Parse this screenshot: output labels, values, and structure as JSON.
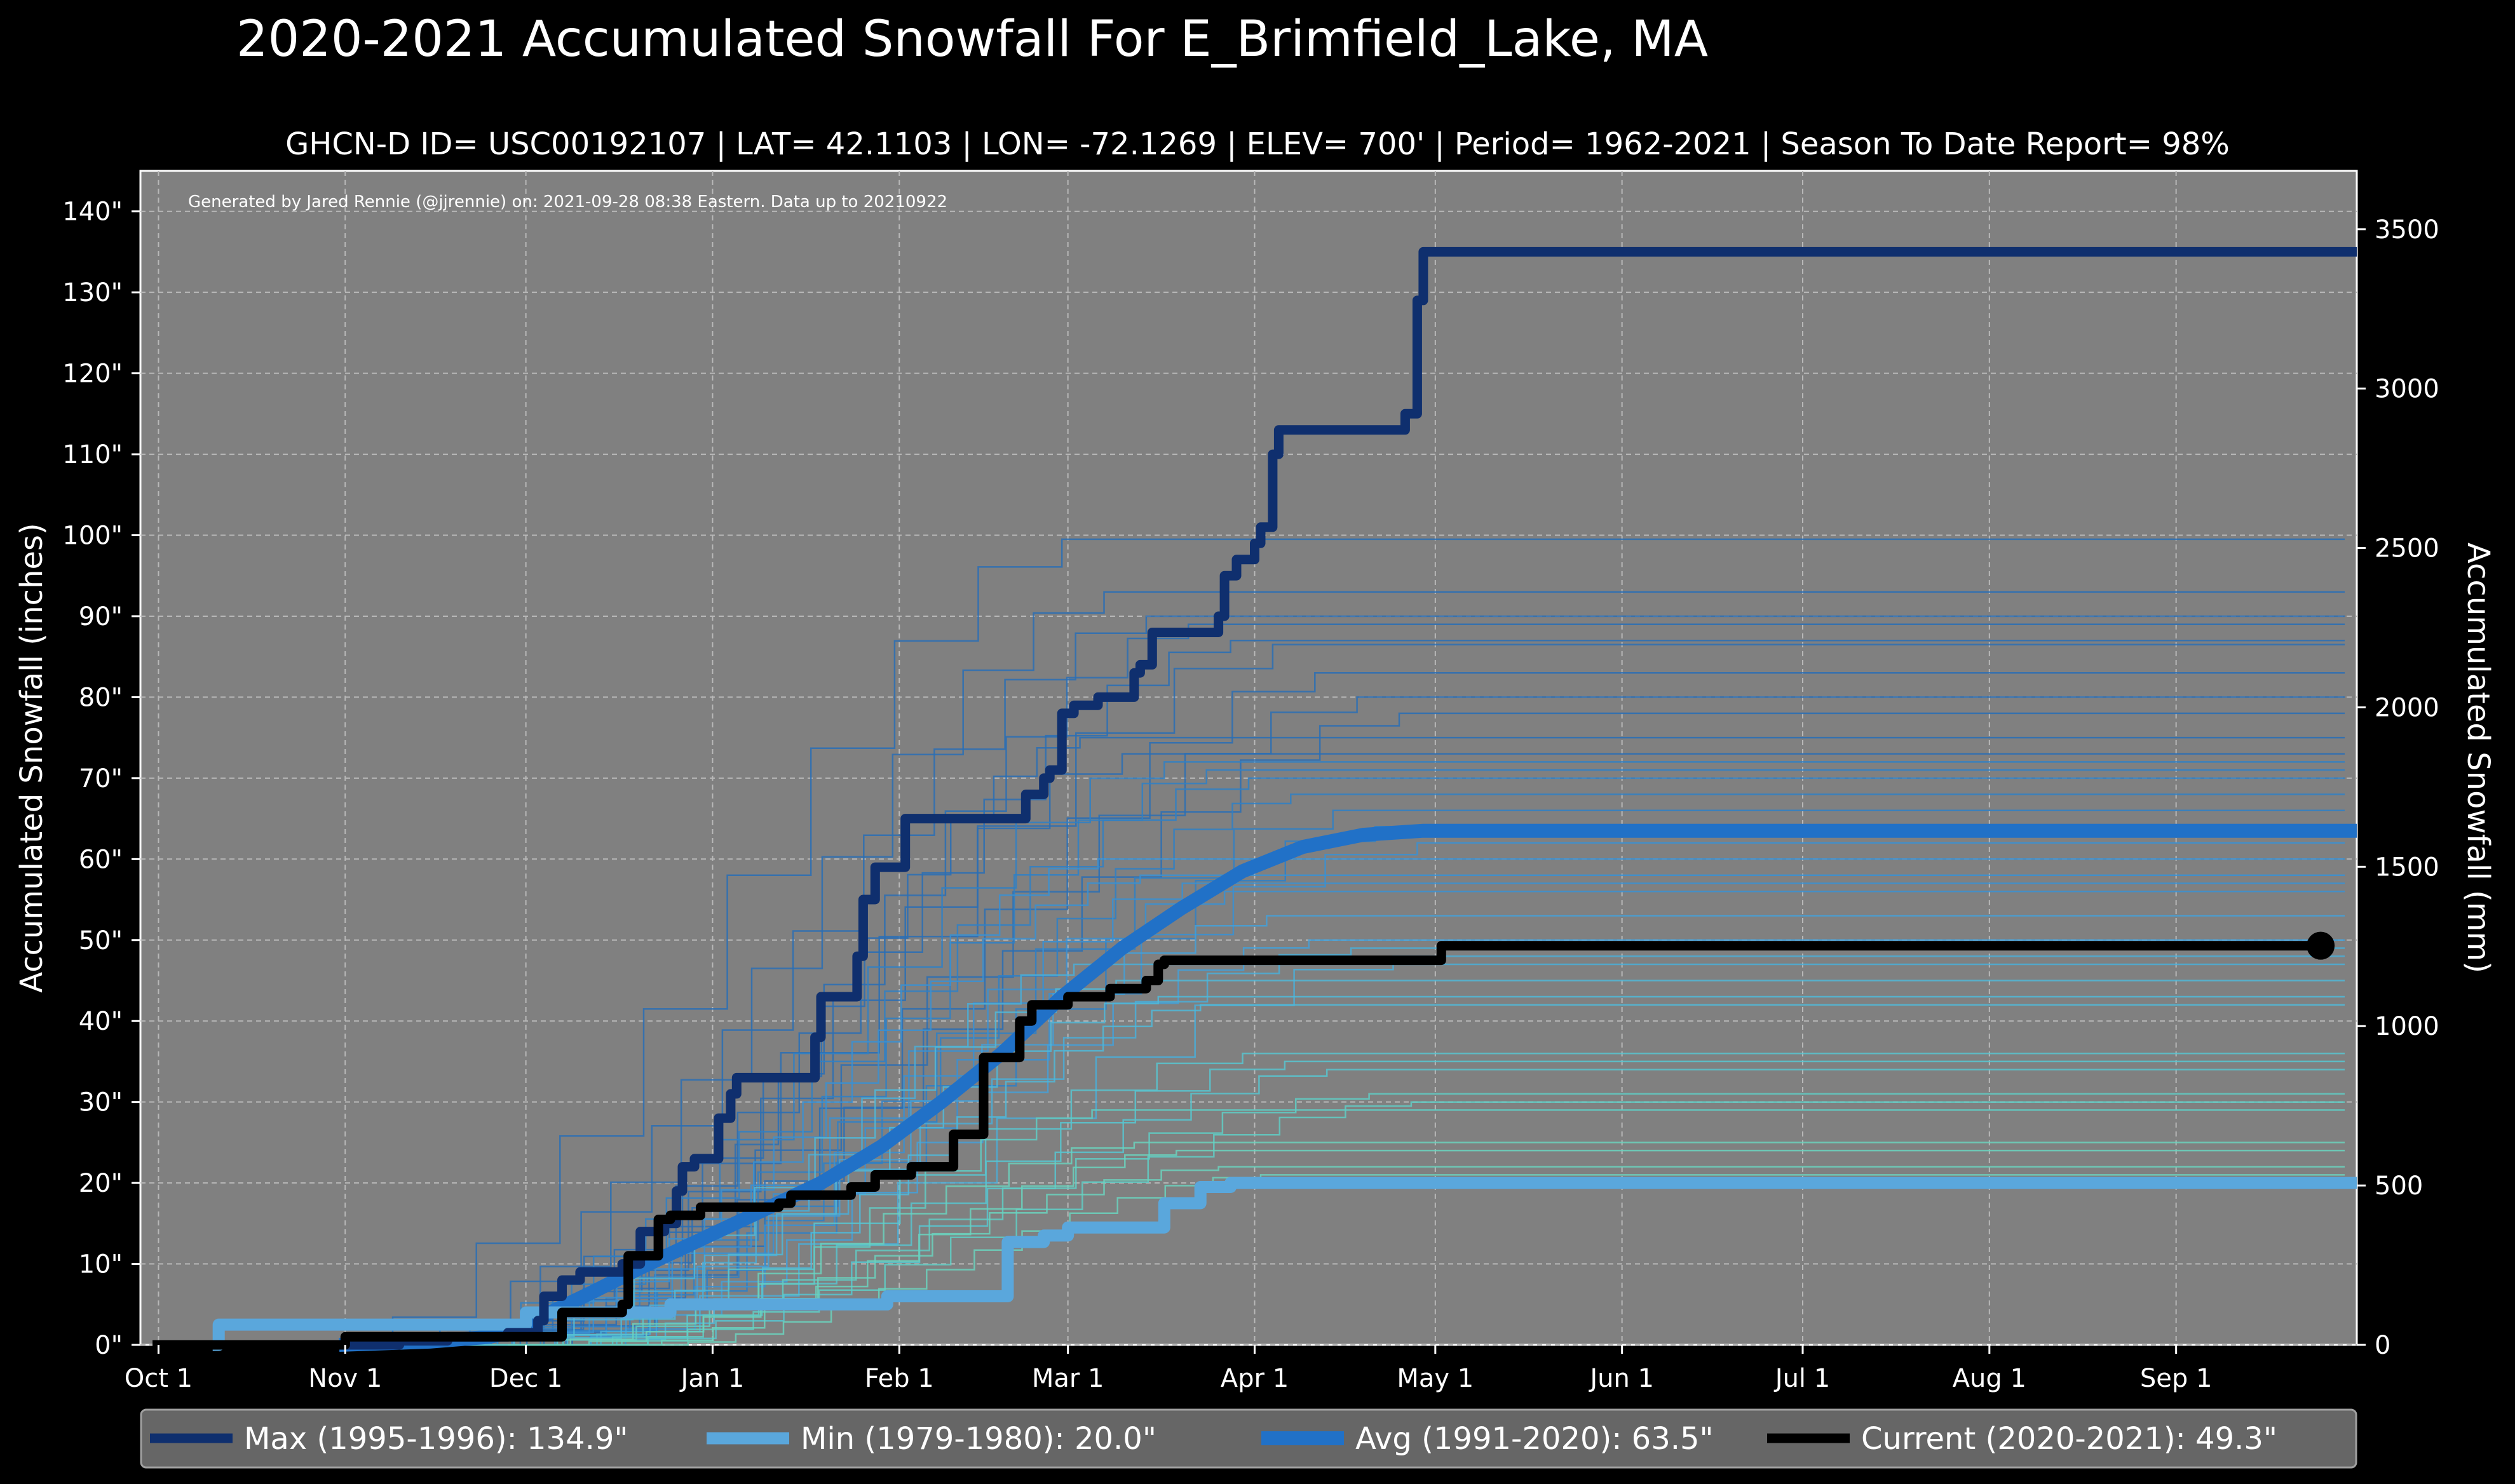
{
  "title": "2020-2021 Accumulated Snowfall For E_Brimfield_Lake, MA",
  "subtitle": "GHCN-D ID= USC00192107 | LAT= 42.1103 | LON= -72.1269 | ELEV= 700' | Period= 1962-2021 | Season To Date Report= 98%",
  "credit": "Generated by Jared Rennie (@jjrennie) on: 2021-09-28 08:38 Eastern. Data up to 20210922",
  "colors": {
    "background": "#000000",
    "plot_bg": "#808080",
    "max": "#0f2f6e",
    "min": "#5aa7dc",
    "avg": "#2171c7",
    "current": "#000000",
    "legend_bg": "#666666"
  },
  "chart_data": {
    "type": "line",
    "title": "2020-2021 Accumulated Snowfall For E_Brimfield_Lake, MA",
    "xlabel": "",
    "ylabel": "Accumulated Snowfall (inches)",
    "y2label": "Accumulated Snowfall (mm)",
    "x_unit": "day of season (0 = Oct 1)",
    "xlim": [
      -3,
      365
    ],
    "ylim": [
      0,
      145
    ],
    "y2lim": [
      0,
      3683
    ],
    "grid": true,
    "x_ticks": [
      {
        "day": 0,
        "label": "Oct 1"
      },
      {
        "day": 31,
        "label": "Nov 1"
      },
      {
        "day": 61,
        "label": "Dec 1"
      },
      {
        "day": 92,
        "label": "Jan 1"
      },
      {
        "day": 123,
        "label": "Feb 1"
      },
      {
        "day": 151,
        "label": "Mar 1"
      },
      {
        "day": 182,
        "label": "Apr 1"
      },
      {
        "day": 212,
        "label": "May 1"
      },
      {
        "day": 243,
        "label": "Jun 1"
      },
      {
        "day": 273,
        "label": "Jul 1"
      },
      {
        "day": 304,
        "label": "Aug 1"
      },
      {
        "day": 335,
        "label": "Sep 1"
      }
    ],
    "y_ticks": [
      {
        "value": 0,
        "label": "0\""
      },
      {
        "value": 10,
        "label": "10\""
      },
      {
        "value": 20,
        "label": "20\""
      },
      {
        "value": 30,
        "label": "30\""
      },
      {
        "value": 40,
        "label": "40\""
      },
      {
        "value": 50,
        "label": "50\""
      },
      {
        "value": 60,
        "label": "60\""
      },
      {
        "value": 70,
        "label": "70\""
      },
      {
        "value": 80,
        "label": "80\""
      },
      {
        "value": 90,
        "label": "90\""
      },
      {
        "value": 100,
        "label": "100\""
      },
      {
        "value": 110,
        "label": "110\""
      },
      {
        "value": 120,
        "label": "120\""
      },
      {
        "value": 130,
        "label": "130\""
      },
      {
        "value": 140,
        "label": "140\""
      }
    ],
    "y2_ticks": [
      {
        "value": 0,
        "label": "0"
      },
      {
        "value": 500,
        "label": "500"
      },
      {
        "value": 1000,
        "label": "1000"
      },
      {
        "value": 1500,
        "label": "1500"
      },
      {
        "value": 2000,
        "label": "2000"
      },
      {
        "value": 2500,
        "label": "2500"
      },
      {
        "value": 3000,
        "label": "3000"
      },
      {
        "value": 3500,
        "label": "3500"
      }
    ],
    "series": [
      {
        "name": "Max (1995-1996)",
        "legend_label": "Max (1995-1996):  134.9\"",
        "color": "#0f2f6e",
        "width": 15,
        "step": true,
        "points": [
          [
            0,
            0
          ],
          [
            40,
            0.5
          ],
          [
            48,
            1
          ],
          [
            58,
            1.5
          ],
          [
            63,
            3
          ],
          [
            64,
            6
          ],
          [
            67,
            8
          ],
          [
            70,
            9
          ],
          [
            74,
            9
          ],
          [
            77,
            10
          ],
          [
            80,
            14
          ],
          [
            84,
            15
          ],
          [
            86,
            19
          ],
          [
            87,
            22
          ],
          [
            89,
            23
          ],
          [
            91,
            23
          ],
          [
            93,
            28
          ],
          [
            95,
            31
          ],
          [
            96,
            33
          ],
          [
            105,
            33
          ],
          [
            109,
            38
          ],
          [
            110,
            43
          ],
          [
            114,
            43
          ],
          [
            116,
            48
          ],
          [
            117,
            55
          ],
          [
            119,
            59
          ],
          [
            121,
            59
          ],
          [
            124,
            65
          ],
          [
            142,
            65
          ],
          [
            144,
            68
          ],
          [
            145,
            68
          ],
          [
            147,
            70
          ],
          [
            148,
            71
          ],
          [
            150,
            78
          ],
          [
            152,
            79
          ],
          [
            155,
            79
          ],
          [
            156,
            80
          ],
          [
            161,
            80
          ],
          [
            162,
            83
          ],
          [
            163,
            84
          ],
          [
            165,
            88
          ],
          [
            175,
            88
          ],
          [
            176,
            90
          ],
          [
            177,
            95
          ],
          [
            179,
            97
          ],
          [
            182,
            99
          ],
          [
            183,
            101
          ],
          [
            185,
            110
          ],
          [
            186,
            113
          ],
          [
            205,
            113
          ],
          [
            207,
            115
          ],
          [
            208,
            115
          ],
          [
            209,
            129
          ],
          [
            210,
            135
          ],
          [
            365,
            135
          ]
        ]
      },
      {
        "name": "Min (1979-1980)",
        "legend_label": "Min (1979-1980):   20.0\"",
        "color": "#5aa7dc",
        "width": 19,
        "step": true,
        "points": [
          [
            9,
            0
          ],
          [
            10,
            2.5
          ],
          [
            60,
            2.5
          ],
          [
            61,
            4
          ],
          [
            84,
            4
          ],
          [
            85,
            5
          ],
          [
            120,
            5
          ],
          [
            121,
            6
          ],
          [
            139,
            6
          ],
          [
            141,
            12.7
          ],
          [
            145,
            12.7
          ],
          [
            147,
            13.5
          ],
          [
            149,
            13.5
          ],
          [
            151,
            14.5
          ],
          [
            165,
            14.5
          ],
          [
            167,
            17.5
          ],
          [
            171,
            17.5
          ],
          [
            173,
            19.5
          ],
          [
            176,
            19.5
          ],
          [
            178,
            20
          ],
          [
            365,
            20
          ]
        ]
      },
      {
        "name": "Avg (1991-2020)",
        "legend_label": "Avg (1991-2020):   63.5\"",
        "color": "#2171c7",
        "width": 22,
        "step": false,
        "points": [
          [
            30,
            0
          ],
          [
            45,
            0.4
          ],
          [
            55,
            1
          ],
          [
            61,
            2
          ],
          [
            65,
            4
          ],
          [
            72,
            6.5
          ],
          [
            80,
            9.5
          ],
          [
            90,
            13
          ],
          [
            100,
            16.5
          ],
          [
            110,
            20
          ],
          [
            120,
            24.5
          ],
          [
            130,
            30
          ],
          [
            140,
            36
          ],
          [
            150,
            43
          ],
          [
            160,
            49
          ],
          [
            170,
            54
          ],
          [
            180,
            58.5
          ],
          [
            190,
            61.5
          ],
          [
            200,
            63
          ],
          [
            210,
            63.5
          ],
          [
            365,
            63.5
          ]
        ]
      },
      {
        "name": "Current (2020-2021)",
        "legend_label": "Current (2020-2021):   49.3\"",
        "color": "#000000",
        "width": 15,
        "step": true,
        "points": [
          [
            -1,
            0
          ],
          [
            30,
            0
          ],
          [
            31,
            1
          ],
          [
            65,
            1
          ],
          [
            67,
            4
          ],
          [
            75,
            4
          ],
          [
            77,
            5
          ],
          [
            78,
            11
          ],
          [
            81,
            11
          ],
          [
            83,
            15.5
          ],
          [
            85,
            16
          ],
          [
            88,
            16
          ],
          [
            90,
            17
          ],
          [
            101,
            17
          ],
          [
            103,
            17.5
          ],
          [
            105,
            18.5
          ],
          [
            113,
            18.5
          ],
          [
            115,
            19.5
          ],
          [
            117,
            19.5
          ],
          [
            119,
            21
          ],
          [
            123,
            21
          ],
          [
            125,
            22
          ],
          [
            130,
            22
          ],
          [
            132,
            26
          ],
          [
            135,
            26
          ],
          [
            137,
            35.5
          ],
          [
            141,
            35.5
          ],
          [
            143,
            40
          ],
          [
            145,
            42
          ],
          [
            149,
            42
          ],
          [
            151,
            43
          ],
          [
            156,
            43
          ],
          [
            158,
            44
          ],
          [
            162,
            44
          ],
          [
            164,
            45
          ],
          [
            165,
            45
          ],
          [
            166,
            47
          ],
          [
            167,
            47.5
          ],
          [
            211,
            47.5
          ],
          [
            213,
            49.3
          ],
          [
            359,
            49.3
          ]
        ],
        "end_marker": true
      }
    ],
    "background_seasons": [
      {
        "start": 25,
        "total": 99.5,
        "color": "#2a6fb5"
      },
      {
        "start": 40,
        "total": 93,
        "color": "#2a6fb5"
      },
      {
        "start": 35,
        "total": 90,
        "color": "#2a6fb5"
      },
      {
        "start": 50,
        "total": 89,
        "color": "#2a6fb5"
      },
      {
        "start": 45,
        "total": 87,
        "color": "#2a6fb5"
      },
      {
        "start": 38,
        "total": 86.5,
        "color": "#2a6fb5"
      },
      {
        "start": 55,
        "total": 83,
        "color": "#2a6fb5"
      },
      {
        "start": 42,
        "total": 80,
        "color": "#2a6fb5"
      },
      {
        "start": 48,
        "total": 78,
        "color": "#2a6fb5"
      },
      {
        "start": 60,
        "total": 75,
        "color": "#2a6fb5"
      },
      {
        "start": 52,
        "total": 73,
        "color": "#2a6fb5"
      },
      {
        "start": 44,
        "total": 72,
        "color": "#2f80c6"
      },
      {
        "start": 57,
        "total": 71,
        "color": "#2f80c6"
      },
      {
        "start": 36,
        "total": 70,
        "color": "#2f80c6"
      },
      {
        "start": 62,
        "total": 68,
        "color": "#2f80c6"
      },
      {
        "start": 47,
        "total": 66,
        "color": "#2f80c6"
      },
      {
        "start": 53,
        "total": 64,
        "color": "#2f80c6"
      },
      {
        "start": 41,
        "total": 62,
        "color": "#3a90d2"
      },
      {
        "start": 58,
        "total": 60,
        "color": "#3a90d2"
      },
      {
        "start": 50,
        "total": 58,
        "color": "#3a90d2"
      },
      {
        "start": 66,
        "total": 57,
        "color": "#3a90d2"
      },
      {
        "start": 46,
        "total": 56,
        "color": "#3a90d2"
      },
      {
        "start": 54,
        "total": 53,
        "color": "#44a0d8"
      },
      {
        "start": 61,
        "total": 50,
        "color": "#44a0d8"
      },
      {
        "start": 43,
        "total": 49,
        "color": "#4aaed8"
      },
      {
        "start": 57,
        "total": 48,
        "color": "#4aaed8"
      },
      {
        "start": 64,
        "total": 47,
        "color": "#4aaed8"
      },
      {
        "start": 49,
        "total": 45,
        "color": "#50b8d8"
      },
      {
        "start": 59,
        "total": 43,
        "color": "#50b8d8"
      },
      {
        "start": 68,
        "total": 42,
        "color": "#50b8d8"
      },
      {
        "start": 52,
        "total": 36,
        "color": "#58c4cf"
      },
      {
        "start": 63,
        "total": 35,
        "color": "#58c4cf"
      },
      {
        "start": 70,
        "total": 34,
        "color": "#58c4cf"
      },
      {
        "start": 55,
        "total": 31,
        "color": "#60ccc4"
      },
      {
        "start": 66,
        "total": 30,
        "color": "#60ccc4"
      },
      {
        "start": 72,
        "total": 29,
        "color": "#60ccc4"
      },
      {
        "start": 58,
        "total": 25,
        "color": "#6bd2bd"
      },
      {
        "start": 75,
        "total": 24,
        "color": "#6bd2bd"
      },
      {
        "start": 62,
        "total": 22,
        "color": "#6bd2bd"
      },
      {
        "start": 80,
        "total": 21,
        "color": "#6bd2bd"
      }
    ]
  }
}
